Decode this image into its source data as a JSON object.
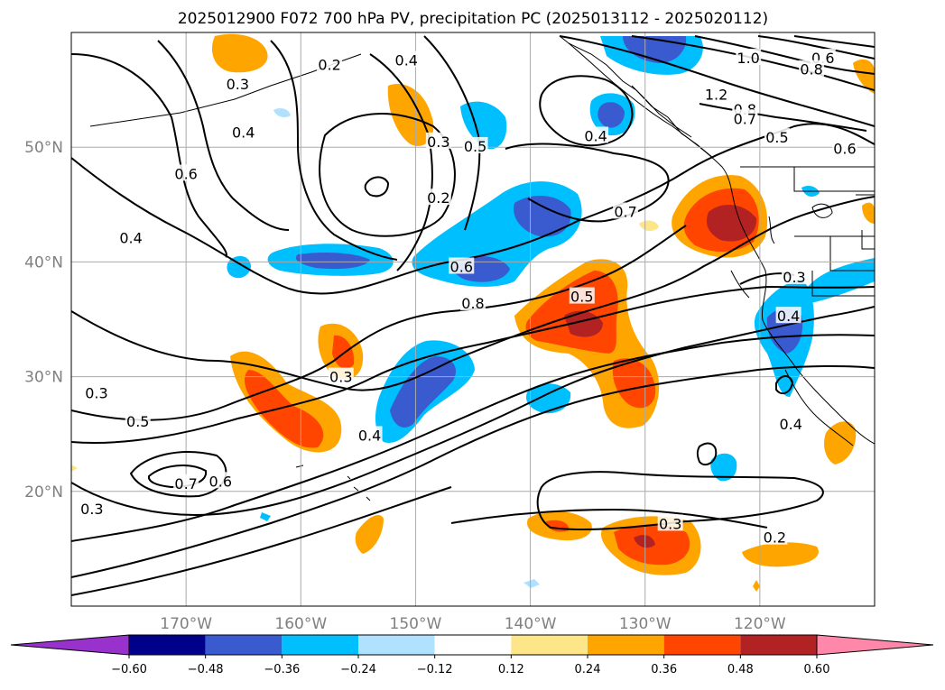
{
  "chart_data": {
    "type": "map",
    "title": "2025012900 F072 700 hPa PV, precipitation PC (2025013112 - 2025020112)",
    "lon_range": [
      -180,
      -110
    ],
    "lat_range": [
      10,
      60
    ],
    "lon_ticks": [
      -170,
      -160,
      -150,
      -140,
      -130,
      -120
    ],
    "lon_tick_labels": [
      "170°W",
      "160°W",
      "150°W",
      "140°W",
      "130°W",
      "120°W"
    ],
    "lat_ticks": [
      20,
      30,
      40,
      50
    ],
    "lat_tick_labels": [
      "20°N",
      "30°N",
      "40°N",
      "50°N"
    ],
    "grid": true,
    "colorbar": {
      "orientation": "horizontal",
      "extend": "both",
      "levels": [
        -0.6,
        -0.48,
        -0.36,
        -0.24,
        -0.12,
        0.12,
        0.24,
        0.36,
        0.48,
        0.6
      ],
      "tick_labels": [
        "−0.60",
        "−0.48",
        "−0.36",
        "−0.24",
        "−0.12",
        "0.12",
        "0.24",
        "0.36",
        "0.48",
        "0.60"
      ],
      "colors": [
        "#9932cc",
        "#00008b",
        "#3a5bd0",
        "#00bfff",
        "#b0e2ff",
        "#ffffff",
        "#fde68a",
        "#ffa500",
        "#ff4500",
        "#b22222",
        "#ff88aa"
      ]
    },
    "contour_labels": [
      {
        "text": "0.2",
        "lon": -157.5,
        "lat": 57.2
      },
      {
        "text": "0.3",
        "lon": -165.5,
        "lat": 55.5
      },
      {
        "text": "0.4",
        "lon": -165.0,
        "lat": 51.3
      },
      {
        "text": "0.6",
        "lon": -170.0,
        "lat": 47.7
      },
      {
        "text": "0.4",
        "lon": -174.8,
        "lat": 42.1
      },
      {
        "text": "0.4",
        "lon": -150.8,
        "lat": 57.6
      },
      {
        "text": "0.3",
        "lon": -148.0,
        "lat": 50.5
      },
      {
        "text": "0.2",
        "lon": -148.0,
        "lat": 45.6
      },
      {
        "text": "0.5",
        "lon": -144.8,
        "lat": 50.1
      },
      {
        "text": "0.6",
        "lon": -146.0,
        "lat": 39.6
      },
      {
        "text": "0.8",
        "lon": -145.0,
        "lat": 36.4
      },
      {
        "text": "0.5",
        "lon": -135.5,
        "lat": 37.0
      },
      {
        "text": "0.7",
        "lon": -131.7,
        "lat": 44.4
      },
      {
        "text": "0.4",
        "lon": -134.3,
        "lat": 51.0
      },
      {
        "text": "1.0",
        "lon": -121.0,
        "lat": 57.8
      },
      {
        "text": "0.6",
        "lon": -114.5,
        "lat": 57.8
      },
      {
        "text": "0.8",
        "lon": -115.5,
        "lat": 56.8
      },
      {
        "text": "1.2",
        "lon": -123.8,
        "lat": 54.6
      },
      {
        "text": "0.8",
        "lon": -121.3,
        "lat": 53.3
      },
      {
        "text": "0.7",
        "lon": -121.3,
        "lat": 52.5
      },
      {
        "text": "0.5",
        "lon": -118.5,
        "lat": 50.9
      },
      {
        "text": "0.6",
        "lon": -112.6,
        "lat": 49.9
      },
      {
        "text": "0.3",
        "lon": -117.0,
        "lat": 38.7
      },
      {
        "text": "0.4",
        "lon": -117.5,
        "lat": 35.3
      },
      {
        "text": "0.4",
        "lon": -117.3,
        "lat": 25.9
      },
      {
        "text": "0.3",
        "lon": -156.5,
        "lat": 30.0
      },
      {
        "text": "0.3",
        "lon": -177.8,
        "lat": 28.6
      },
      {
        "text": "0.5",
        "lon": -174.2,
        "lat": 26.1
      },
      {
        "text": "0.4",
        "lon": -154.0,
        "lat": 24.9
      },
      {
        "text": "0.7",
        "lon": -170.0,
        "lat": 20.7
      },
      {
        "text": "0.6",
        "lon": -167.0,
        "lat": 20.9
      },
      {
        "text": "0.3",
        "lon": -178.2,
        "lat": 18.5
      },
      {
        "text": "0.3",
        "lon": -127.8,
        "lat": 17.2
      },
      {
        "text": "0.2",
        "lon": -118.7,
        "lat": 16.0
      }
    ]
  }
}
